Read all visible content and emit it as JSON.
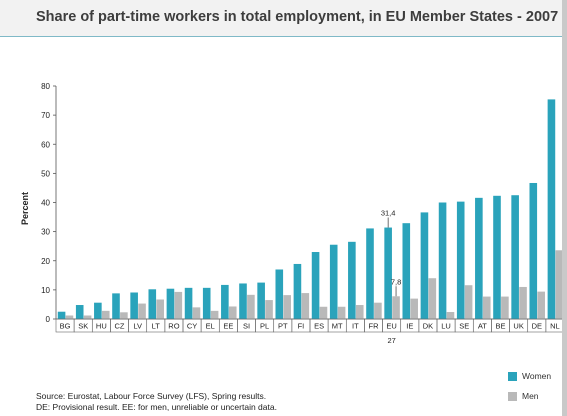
{
  "title": "Share of part-time workers in total employment, in EU Member States - 2007",
  "source_lines": [
    "Source: Eurostat, Labour Force Survey (LFS), Spring results.",
    "DE: Provisional result. EE: for men, unreliable or uncertain data."
  ],
  "colors": {
    "women": "#2aa3bb",
    "men": "#b9b9b9"
  },
  "chart_data": {
    "type": "bar",
    "title": "Share of part-time workers in total employment, in EU Member States - 2007",
    "ylabel": "Percent",
    "xlabel": "",
    "ylim": [
      0,
      80
    ],
    "yticks": [
      0,
      10,
      20,
      30,
      40,
      50,
      60,
      70,
      80
    ],
    "grid": false,
    "legend_position": "bottom-right",
    "categories": [
      "BG",
      "SK",
      "HU",
      "CZ",
      "LV",
      "LT",
      "RO",
      "CY",
      "EL",
      "EE",
      "SI",
      "PL",
      "PT",
      "FI",
      "ES",
      "MT",
      "IT",
      "FR",
      "EU",
      "IE",
      "DK",
      "LU",
      "SE",
      "AT",
      "BE",
      "UK",
      "DE",
      "NL"
    ],
    "category_sublabels": {
      "EU": "27"
    },
    "series": [
      {
        "name": "Women",
        "values": [
          2.5,
          4.8,
          5.6,
          8.8,
          9.1,
          10.2,
          10.4,
          10.7,
          10.7,
          11.7,
          12.2,
          12.5,
          17.0,
          18.9,
          23.0,
          25.5,
          26.5,
          31.1,
          31.4,
          32.9,
          36.6,
          40.0,
          40.3,
          41.6,
          42.3,
          42.5,
          46.7,
          75.4
        ]
      },
      {
        "name": "Men",
        "values": [
          1.2,
          1.2,
          2.8,
          2.3,
          5.3,
          6.7,
          9.3,
          4.0,
          2.8,
          4.3,
          8.3,
          6.5,
          8.2,
          8.9,
          4.2,
          4.2,
          4.8,
          5.6,
          7.8,
          7.0,
          14.0,
          2.4,
          11.6,
          7.7,
          7.7,
          11.0,
          9.4,
          23.6
        ]
      }
    ],
    "annotations": [
      {
        "category": "EU",
        "series": "Women",
        "text": "31,4"
      },
      {
        "category": "EU",
        "series": "Men",
        "text": "7,8"
      }
    ]
  }
}
